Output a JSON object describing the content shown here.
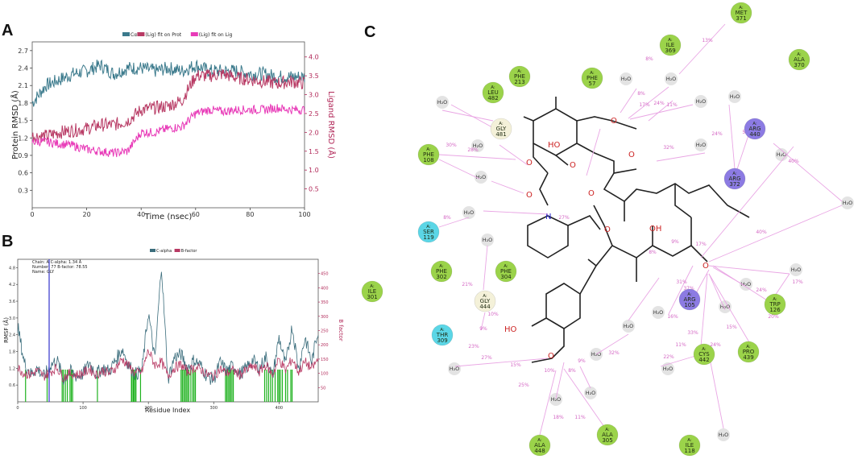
{
  "panels": {
    "a": "A",
    "b": "B",
    "c": "C"
  },
  "chart_data": [
    {
      "type": "line",
      "legend": [
        "Cα",
        "(Lig) fit on Prot",
        "(Lig) fit on Lig"
      ],
      "legend_placement": "top-center",
      "xlabel": "Time (nsec)",
      "ylabel": "Protein RMSD (Å)",
      "y2label": "Ligand RMSD (Å)",
      "xlim": [
        0,
        100
      ],
      "ylim": [
        0,
        2.85
      ],
      "y2lim": [
        0,
        4.4
      ],
      "xticks": [
        "0",
        "20",
        "40",
        "60",
        "80",
        "100"
      ],
      "yticks": [
        "0.3",
        "0.6",
        "0.9",
        "1.2",
        "1.5",
        "1.8",
        "2.1",
        "2.4",
        "2.7"
      ],
      "y2ticks": [
        "0.5",
        "1.0",
        "1.5",
        "2.0",
        "2.5",
        "3.0",
        "3.5",
        "4.0"
      ],
      "series": [
        {
          "name": "Cα",
          "axis": "left",
          "color": "#3b7a8c",
          "x": [
            0,
            5,
            10,
            15,
            20,
            25,
            30,
            35,
            40,
            45,
            50,
            55,
            60,
            65,
            70,
            75,
            80,
            85,
            90,
            95,
            100
          ],
          "y": [
            1.8,
            2.1,
            2.2,
            2.3,
            2.35,
            2.45,
            2.3,
            2.4,
            2.4,
            2.35,
            2.4,
            2.35,
            2.45,
            2.35,
            2.35,
            2.35,
            2.3,
            2.3,
            2.25,
            2.25,
            2.25
          ]
        },
        {
          "name": "(Lig) fit on Prot",
          "axis": "right",
          "color": "#b83a64",
          "x": [
            0,
            5,
            10,
            15,
            20,
            25,
            30,
            35,
            40,
            45,
            50,
            55,
            60,
            65,
            70,
            75,
            80,
            85,
            90,
            95,
            100
          ],
          "y": [
            1.9,
            1.9,
            2.0,
            2.05,
            2.1,
            2.2,
            2.2,
            2.3,
            2.6,
            2.65,
            2.7,
            2.85,
            3.5,
            3.5,
            3.55,
            3.45,
            3.4,
            3.35,
            3.3,
            3.35,
            3.3
          ]
        },
        {
          "name": "(Lig) fit on Lig",
          "axis": "right",
          "color": "#e83bb8",
          "x": [
            0,
            5,
            10,
            15,
            20,
            25,
            30,
            35,
            40,
            45,
            50,
            55,
            60,
            65,
            70,
            75,
            80,
            85,
            90,
            95,
            100
          ],
          "y": [
            1.75,
            1.75,
            1.7,
            1.65,
            1.55,
            1.5,
            1.45,
            1.5,
            2.0,
            2.0,
            2.1,
            2.15,
            2.5,
            2.6,
            2.55,
            2.6,
            2.6,
            2.6,
            2.65,
            2.6,
            2.6
          ]
        }
      ]
    },
    {
      "type": "line",
      "legend": [
        "C-alpha",
        "B-factor"
      ],
      "legend_placement": "top-center",
      "annotation": "Chain: A   C-alpha: 1.34 Å\nNumber: 77   B-factor: 78.55\nName: GLY",
      "xlabel": "Residue Index",
      "ylabel": "RMSF (Å)",
      "y2label": "B factor",
      "xlim": [
        0,
        460
      ],
      "ylim": [
        0,
        5.1
      ],
      "y2lim": [
        0,
        500
      ],
      "xticks": [
        "0",
        "100",
        "200",
        "300",
        "400"
      ],
      "yticks": [
        "0.6",
        "1.2",
        "1.8",
        "2.4",
        "3.0",
        "3.6",
        "4.2",
        "4.8"
      ],
      "y2ticks": [
        "50",
        "100",
        "150",
        "200",
        "250",
        "300",
        "350",
        "400",
        "450"
      ],
      "series": [
        {
          "name": "C-alpha",
          "axis": "left",
          "color": "#3b6d7c",
          "x": [
            0,
            10,
            20,
            30,
            40,
            50,
            60,
            70,
            80,
            90,
            100,
            110,
            120,
            130,
            140,
            150,
            160,
            170,
            180,
            190,
            200,
            210,
            220,
            230,
            240,
            250,
            260,
            270,
            280,
            290,
            300,
            310,
            320,
            330,
            340,
            350,
            360,
            370,
            380,
            390,
            400,
            410,
            420,
            430,
            440,
            450,
            460
          ],
          "y": [
            2.7,
            1.4,
            1.0,
            1.2,
            0.9,
            1.3,
            1.5,
            0.8,
            1.1,
            0.9,
            1.0,
            1.4,
            1.0,
            1.2,
            1.1,
            1.5,
            1.9,
            1.3,
            1.0,
            1.1,
            3.2,
            1.5,
            4.9,
            0.8,
            1.6,
            1.7,
            1.2,
            1.5,
            1.3,
            0.9,
            0.8,
            1.4,
            1.1,
            1.3,
            1.0,
            1.2,
            1.5,
            1.2,
            1.6,
            0.9,
            2.3,
            1.3,
            2.7,
            1.2,
            2.3,
            1.4,
            2.6
          ]
        },
        {
          "name": "B-factor",
          "axis": "right",
          "color": "#b83a64",
          "x": [
            0,
            10,
            20,
            30,
            40,
            50,
            60,
            70,
            80,
            90,
            100,
            110,
            120,
            130,
            140,
            150,
            160,
            170,
            180,
            190,
            200,
            210,
            220,
            230,
            240,
            250,
            260,
            270,
            280,
            290,
            300,
            310,
            320,
            330,
            340,
            350,
            360,
            370,
            380,
            390,
            400,
            410,
            420,
            430,
            440,
            450,
            460
          ],
          "y": [
            120,
            100,
            95,
            110,
            90,
            105,
            120,
            85,
            100,
            95,
            100,
            115,
            95,
            110,
            100,
            120,
            150,
            125,
            100,
            105,
            180,
            130,
            140,
            90,
            120,
            130,
            105,
            120,
            115,
            95,
            90,
            115,
            100,
            110,
            95,
            110,
            125,
            105,
            130,
            95,
            150,
            110,
            150,
            105,
            140,
            115,
            150
          ]
        }
      ],
      "bars_green_x": [
        12,
        45,
        68,
        70,
        73,
        76,
        80,
        82,
        84,
        122,
        174,
        175,
        177,
        178,
        180,
        181,
        188,
        250,
        252,
        254,
        256,
        258,
        260,
        262,
        265,
        268,
        270,
        272,
        318,
        320,
        322,
        324,
        326,
        328,
        330,
        378,
        381,
        384,
        387,
        390,
        394,
        398,
        400,
        402,
        405,
        410,
        413,
        418,
        420
      ]
    }
  ],
  "diagram": {
    "residues": [
      {
        "chain": "A:",
        "name": "MET",
        "num": "371",
        "color": "#9bd34a"
      },
      {
        "chain": "A:",
        "name": "ILE",
        "num": "369",
        "color": "#9bd34a"
      },
      {
        "chain": "A:",
        "name": "ALA",
        "num": "370",
        "color": "#9bd34a"
      },
      {
        "chain": "A:",
        "name": "PHE",
        "num": "213",
        "color": "#9bd34a"
      },
      {
        "chain": "A:",
        "name": "PHE",
        "num": "57",
        "color": "#9bd34a"
      },
      {
        "chain": "A:",
        "name": "LEU",
        "num": "482",
        "color": "#9bd34a"
      },
      {
        "chain": "A:",
        "name": "GLY",
        "num": "481",
        "color": "#f4f1d9"
      },
      {
        "chain": "A:",
        "name": "ARG",
        "num": "440",
        "color": "#8c7be3"
      },
      {
        "chain": "A:",
        "name": "PHE",
        "num": "108",
        "color": "#9bd34a"
      },
      {
        "chain": "A:",
        "name": "ARG",
        "num": "372",
        "color": "#8c7be3"
      },
      {
        "chain": "A:",
        "name": "SER",
        "num": "119",
        "color": "#5bd6e6"
      },
      {
        "chain": "A:",
        "name": "PHE",
        "num": "302",
        "color": "#9bd34a"
      },
      {
        "chain": "A:",
        "name": "PHE",
        "num": "304",
        "color": "#9bd34a"
      },
      {
        "chain": "A:",
        "name": "ILE",
        "num": "301",
        "color": "#9bd34a"
      },
      {
        "chain": "A:",
        "name": "GLY",
        "num": "444",
        "color": "#f4f1d9"
      },
      {
        "chain": "A:",
        "name": "ARG",
        "num": "105",
        "color": "#8c7be3"
      },
      {
        "chain": "A:",
        "name": "TRP",
        "num": "126",
        "color": "#9bd34a"
      },
      {
        "chain": "A:",
        "name": "THR",
        "num": "309",
        "color": "#5bd6e6"
      },
      {
        "chain": "A:",
        "name": "CYS",
        "num": "442",
        "color": "#9bd34a"
      },
      {
        "chain": "A:",
        "name": "PRO",
        "num": "439",
        "color": "#9bd34a"
      },
      {
        "chain": "A:",
        "name": "ALA",
        "num": "448",
        "color": "#9bd34a"
      },
      {
        "chain": "A:",
        "name": "ALA",
        "num": "305",
        "color": "#9bd34a"
      },
      {
        "chain": "A:",
        "name": "ILE",
        "num": "118",
        "color": "#9bd34a"
      }
    ],
    "water_label": "H₂O",
    "percentages": [
      "13%",
      "8%",
      "8%",
      "17%",
      "24%",
      "11%",
      "24%",
      "55%",
      "32%",
      "30%",
      "28%",
      "40%",
      "40%",
      "17%",
      "21%",
      "8%",
      "27%",
      "31%",
      "37%",
      "9%",
      "8%",
      "9%",
      "10%",
      "17%",
      "24%",
      "20%",
      "15%",
      "24%",
      "16%",
      "33%",
      "10%",
      "8%",
      "25%",
      "18%",
      "11%",
      "22%",
      "11%",
      "16%",
      "32%",
      "23%",
      "27%",
      "15%",
      "9%"
    ],
    "atoms": {
      "ho": "HO",
      "oh_top": "OH",
      "oh_bottom": "HO",
      "n": "N",
      "o": "O"
    }
  }
}
